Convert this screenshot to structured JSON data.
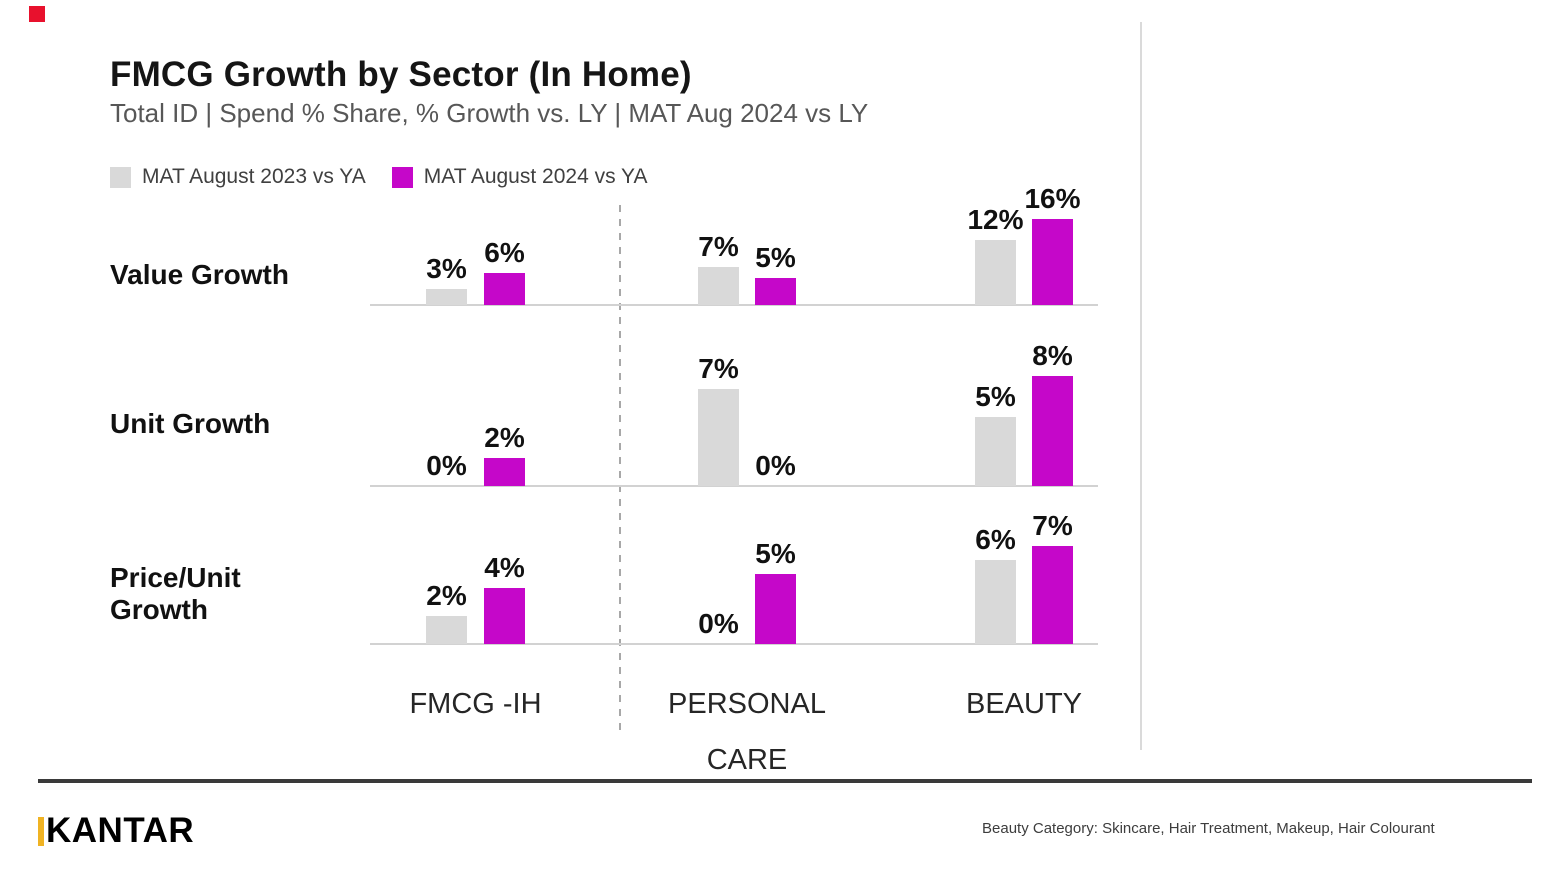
{
  "header": {
    "title": "FMCG Growth by Sector (In Home)",
    "subtitle": "Total ID | Spend % Share, % Growth vs. LY | MAT Aug 2024 vs LY"
  },
  "corner_marker": {
    "color": "#e8112d"
  },
  "chart_data": {
    "type": "bar",
    "unit": "%",
    "title": "FMCG Growth by Sector (In Home)",
    "subtitle": "Total ID | Spend % Share, % Growth vs. LY | MAT Aug 2024 vs LY",
    "grid": false,
    "legend_position": "top-left",
    "categories": [
      "FMCG -IH",
      "PERSONAL CARE",
      "BEAUTY"
    ],
    "row_labels": [
      "Value Growth",
      "Unit Growth",
      "Price/Unit Growth"
    ],
    "series": [
      {
        "name": "MAT August 2023 vs YA",
        "color": "#d9d9d9",
        "values_by_row": [
          [
            3,
            7,
            12
          ],
          [
            0,
            7,
            5
          ],
          [
            2,
            0,
            6
          ]
        ]
      },
      {
        "name": "MAT August 2024 vs YA",
        "color": "#c507c9",
        "values_by_row": [
          [
            6,
            5,
            16
          ],
          [
            2,
            0,
            8
          ],
          [
            4,
            5,
            7
          ]
        ]
      }
    ]
  },
  "footer": {
    "logo_text": "KANTAR",
    "logo_accent_color": "#f0b323",
    "note": "Beauty Category: Skincare, Hair Treatment, Makeup, Hair Colourant"
  }
}
